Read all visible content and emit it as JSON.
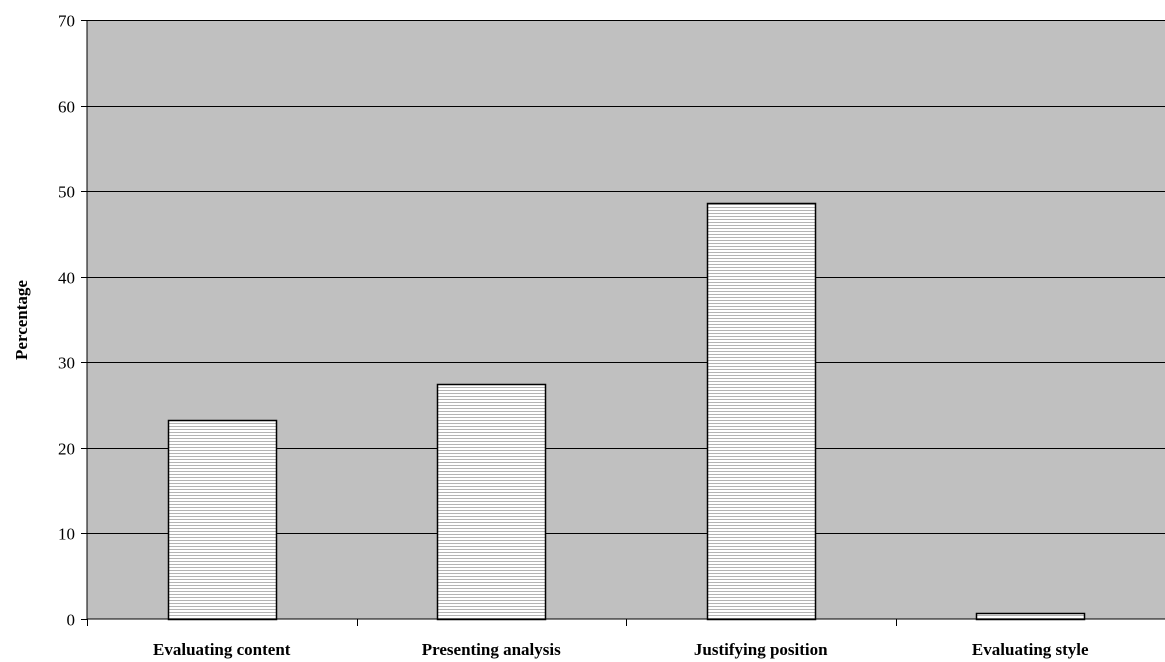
{
  "chart_data": {
    "type": "bar",
    "title": "",
    "xlabel": "",
    "ylabel": "Percentage",
    "categories": [
      "Evaluating content",
      "Presenting analysis",
      "Justifying position",
      "Evaluating style"
    ],
    "values": [
      23.2,
      27.5,
      48.6,
      0.7
    ],
    "ylim": [
      0,
      70
    ],
    "yticks": [
      0,
      10,
      20,
      30,
      40,
      50,
      60,
      70
    ],
    "grid": true,
    "legend": "none",
    "colors": {
      "plot_background": "#c0c0c0",
      "bar_fill": "#ffffff",
      "bar_hatch": "#b0b0b0",
      "bar_stroke": "#000000",
      "gridline": "#000000"
    }
  }
}
